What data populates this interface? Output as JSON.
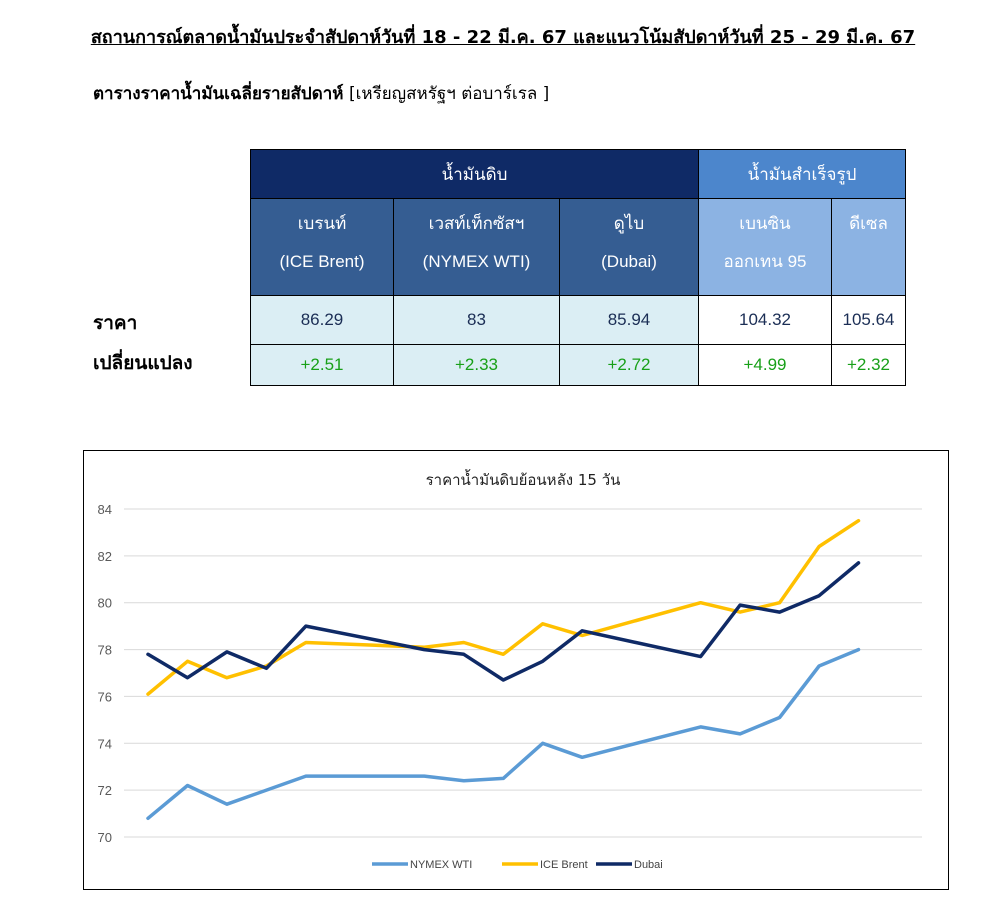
{
  "header": {
    "title": "สถานการณ์ตลาดน้ำมันประจำสัปดาห์วันที่ 18 - 22 มี.ค. 67 และแนวโน้มสัปดาห์วันที่ 25 - 29 มี.ค. 67",
    "table_caption_bold": "ตารางราคาน้ำมันเฉลี่ยรายสัปดาห์",
    "table_caption_unit": "[เหรียญสหรัฐฯ ต่อบาร์เรล ]"
  },
  "table": {
    "group_crude": "น้ำมันดิบ",
    "group_finished": "น้ำมันสำเร็จรูป",
    "columns": [
      {
        "thai": "เบรนท์",
        "eng": "(ICE Brent)",
        "price": "86.29",
        "change": "+2.51"
      },
      {
        "thai": "เวสท์เท็กซัสฯ",
        "eng": "(NYMEX WTI)",
        "price": "83",
        "change": "+2.33"
      },
      {
        "thai": "ดูไบ",
        "eng": "(Dubai)",
        "price": "85.94",
        "change": "+2.72"
      },
      {
        "thai": "เบนซิน",
        "eng": "ออกเทน  95",
        "price": "104.32",
        "change": "+4.99"
      },
      {
        "thai": "ดีเซล",
        "eng": "",
        "price": "105.64",
        "change": "+2.32"
      }
    ],
    "row_price_label": "ราคา",
    "row_change_label": "เปลี่ยนแปลง"
  },
  "chart_data": {
    "type": "line",
    "title": "ราคาน้ำมันดิบย้อนหลัง 15 วัน",
    "xlabel": "",
    "ylabel": "",
    "ylim": [
      70,
      84
    ],
    "yticks": [
      70,
      72,
      74,
      76,
      78,
      80,
      82,
      84
    ],
    "grid": true,
    "legend_position": "bottom",
    "x": [
      1,
      2,
      3,
      4,
      5,
      6,
      7,
      8,
      9,
      10,
      11,
      12,
      13,
      14,
      15,
      16,
      17,
      18,
      19,
      20
    ],
    "series": [
      {
        "name": "NYMEX WTI",
        "color": "#5b9bd5",
        "values": [
          70.8,
          72.2,
          71.4,
          null,
          72.6,
          null,
          null,
          72.6,
          72.4,
          72.5,
          74.0,
          73.4,
          null,
          null,
          74.7,
          74.4,
          75.1,
          77.3,
          78.0,
          null
        ]
      },
      {
        "name": "ICE Brent",
        "color": "#ffc000",
        "values": [
          76.1,
          77.5,
          76.8,
          77.3,
          78.3,
          null,
          null,
          78.1,
          78.3,
          77.8,
          79.1,
          78.6,
          null,
          null,
          80.0,
          79.6,
          80.0,
          82.4,
          83.5,
          null
        ]
      },
      {
        "name": "Dubai",
        "color": "#0f2a66",
        "values": [
          77.8,
          76.8,
          77.9,
          77.2,
          79.0,
          null,
          null,
          78.0,
          77.8,
          76.7,
          77.5,
          78.8,
          null,
          null,
          77.7,
          79.9,
          79.6,
          80.3,
          81.7,
          null
        ]
      }
    ]
  }
}
